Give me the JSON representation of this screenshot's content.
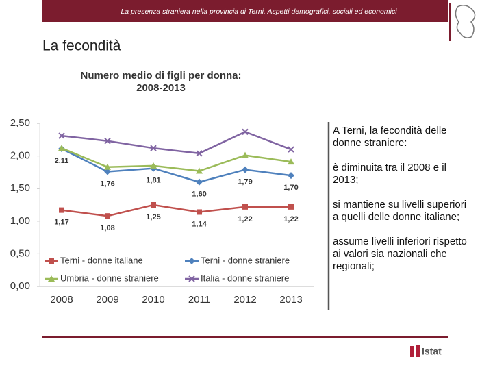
{
  "header": "La presenza straniera nella provincia di Terni. Aspetti demografici, sociali ed economici",
  "slide_title": "La fecondità",
  "sidebar": [
    "A Terni, la fecondità delle donne straniere:",
    "è diminuita tra il 2008 e il 2013;",
    "si mantiene su livelli superiori a quelli delle donne italiane;",
    "assume livelli inferiori rispetto ai valori sia nazionali che regionali;"
  ],
  "logo": "Istat",
  "chart_data": {
    "type": "line",
    "title": "Numero medio di figli per donna:",
    "subtitle": "2008-2013",
    "categories": [
      "2008",
      "2009",
      "2010",
      "2011",
      "2012",
      "2013"
    ],
    "ylim": [
      0,
      2.5
    ],
    "yticks": [
      {
        "value": 0,
        "label": "0,00"
      },
      {
        "value": 0.5,
        "label": "0,50"
      },
      {
        "value": 1,
        "label": "1,00"
      },
      {
        "value": 1.5,
        "label": "1,50"
      },
      {
        "value": 2,
        "label": "2,00"
      },
      {
        "value": 2.5,
        "label": "2,50"
      }
    ],
    "series": [
      {
        "name": "Terni - donne italiane",
        "color": "#c0504d",
        "marker": "square",
        "values": [
          1.17,
          1.08,
          1.25,
          1.14,
          1.22,
          1.22
        ],
        "value_labels": [
          "1,17",
          "1,08",
          "1,25",
          "1,14",
          "1,22",
          "1,22"
        ]
      },
      {
        "name": "Terni - donne straniere",
        "color": "#4f81bd",
        "marker": "diamond",
        "values": [
          2.11,
          1.76,
          1.81,
          1.6,
          1.79,
          1.7
        ],
        "value_labels": [
          "2,11",
          "1,76",
          "1,81",
          "1,60",
          "1,79",
          "1,70"
        ]
      },
      {
        "name": "Umbria - donne straniere",
        "color": "#9bbb59",
        "marker": "triangle",
        "values": [
          2.12,
          1.83,
          1.85,
          1.77,
          2.01,
          1.91
        ]
      },
      {
        "name": "Italia - donne straniere",
        "color": "#8064a2",
        "marker": "x",
        "values": [
          2.31,
          2.23,
          2.12,
          2.04,
          2.37,
          2.1
        ]
      }
    ]
  }
}
